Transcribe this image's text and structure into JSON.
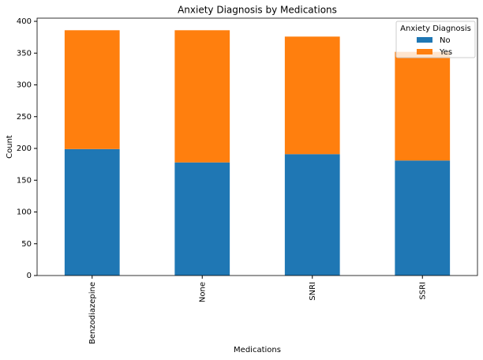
{
  "chart_data": {
    "type": "stacked_bar",
    "title": "Anxiety Diagnosis by Medications",
    "x_label": "Medications",
    "y_label": "Count",
    "categories": [
      "Benzodiazepine",
      "None",
      "SNRI",
      "SSRI"
    ],
    "series": [
      {
        "name": "No",
        "color": "#1f77b4",
        "values": [
          199,
          178,
          191,
          181
        ]
      },
      {
        "name": "Yes",
        "color": "#ff7f0e",
        "values": [
          187,
          208,
          185,
          171
        ]
      }
    ],
    "legend_title": "Anxiety Diagnosis",
    "legend_position": "upper-right",
    "ylim": [
      0,
      405
    ],
    "yticks": [
      0,
      50,
      100,
      150,
      200,
      250,
      300,
      350,
      400
    ],
    "grid": false
  }
}
